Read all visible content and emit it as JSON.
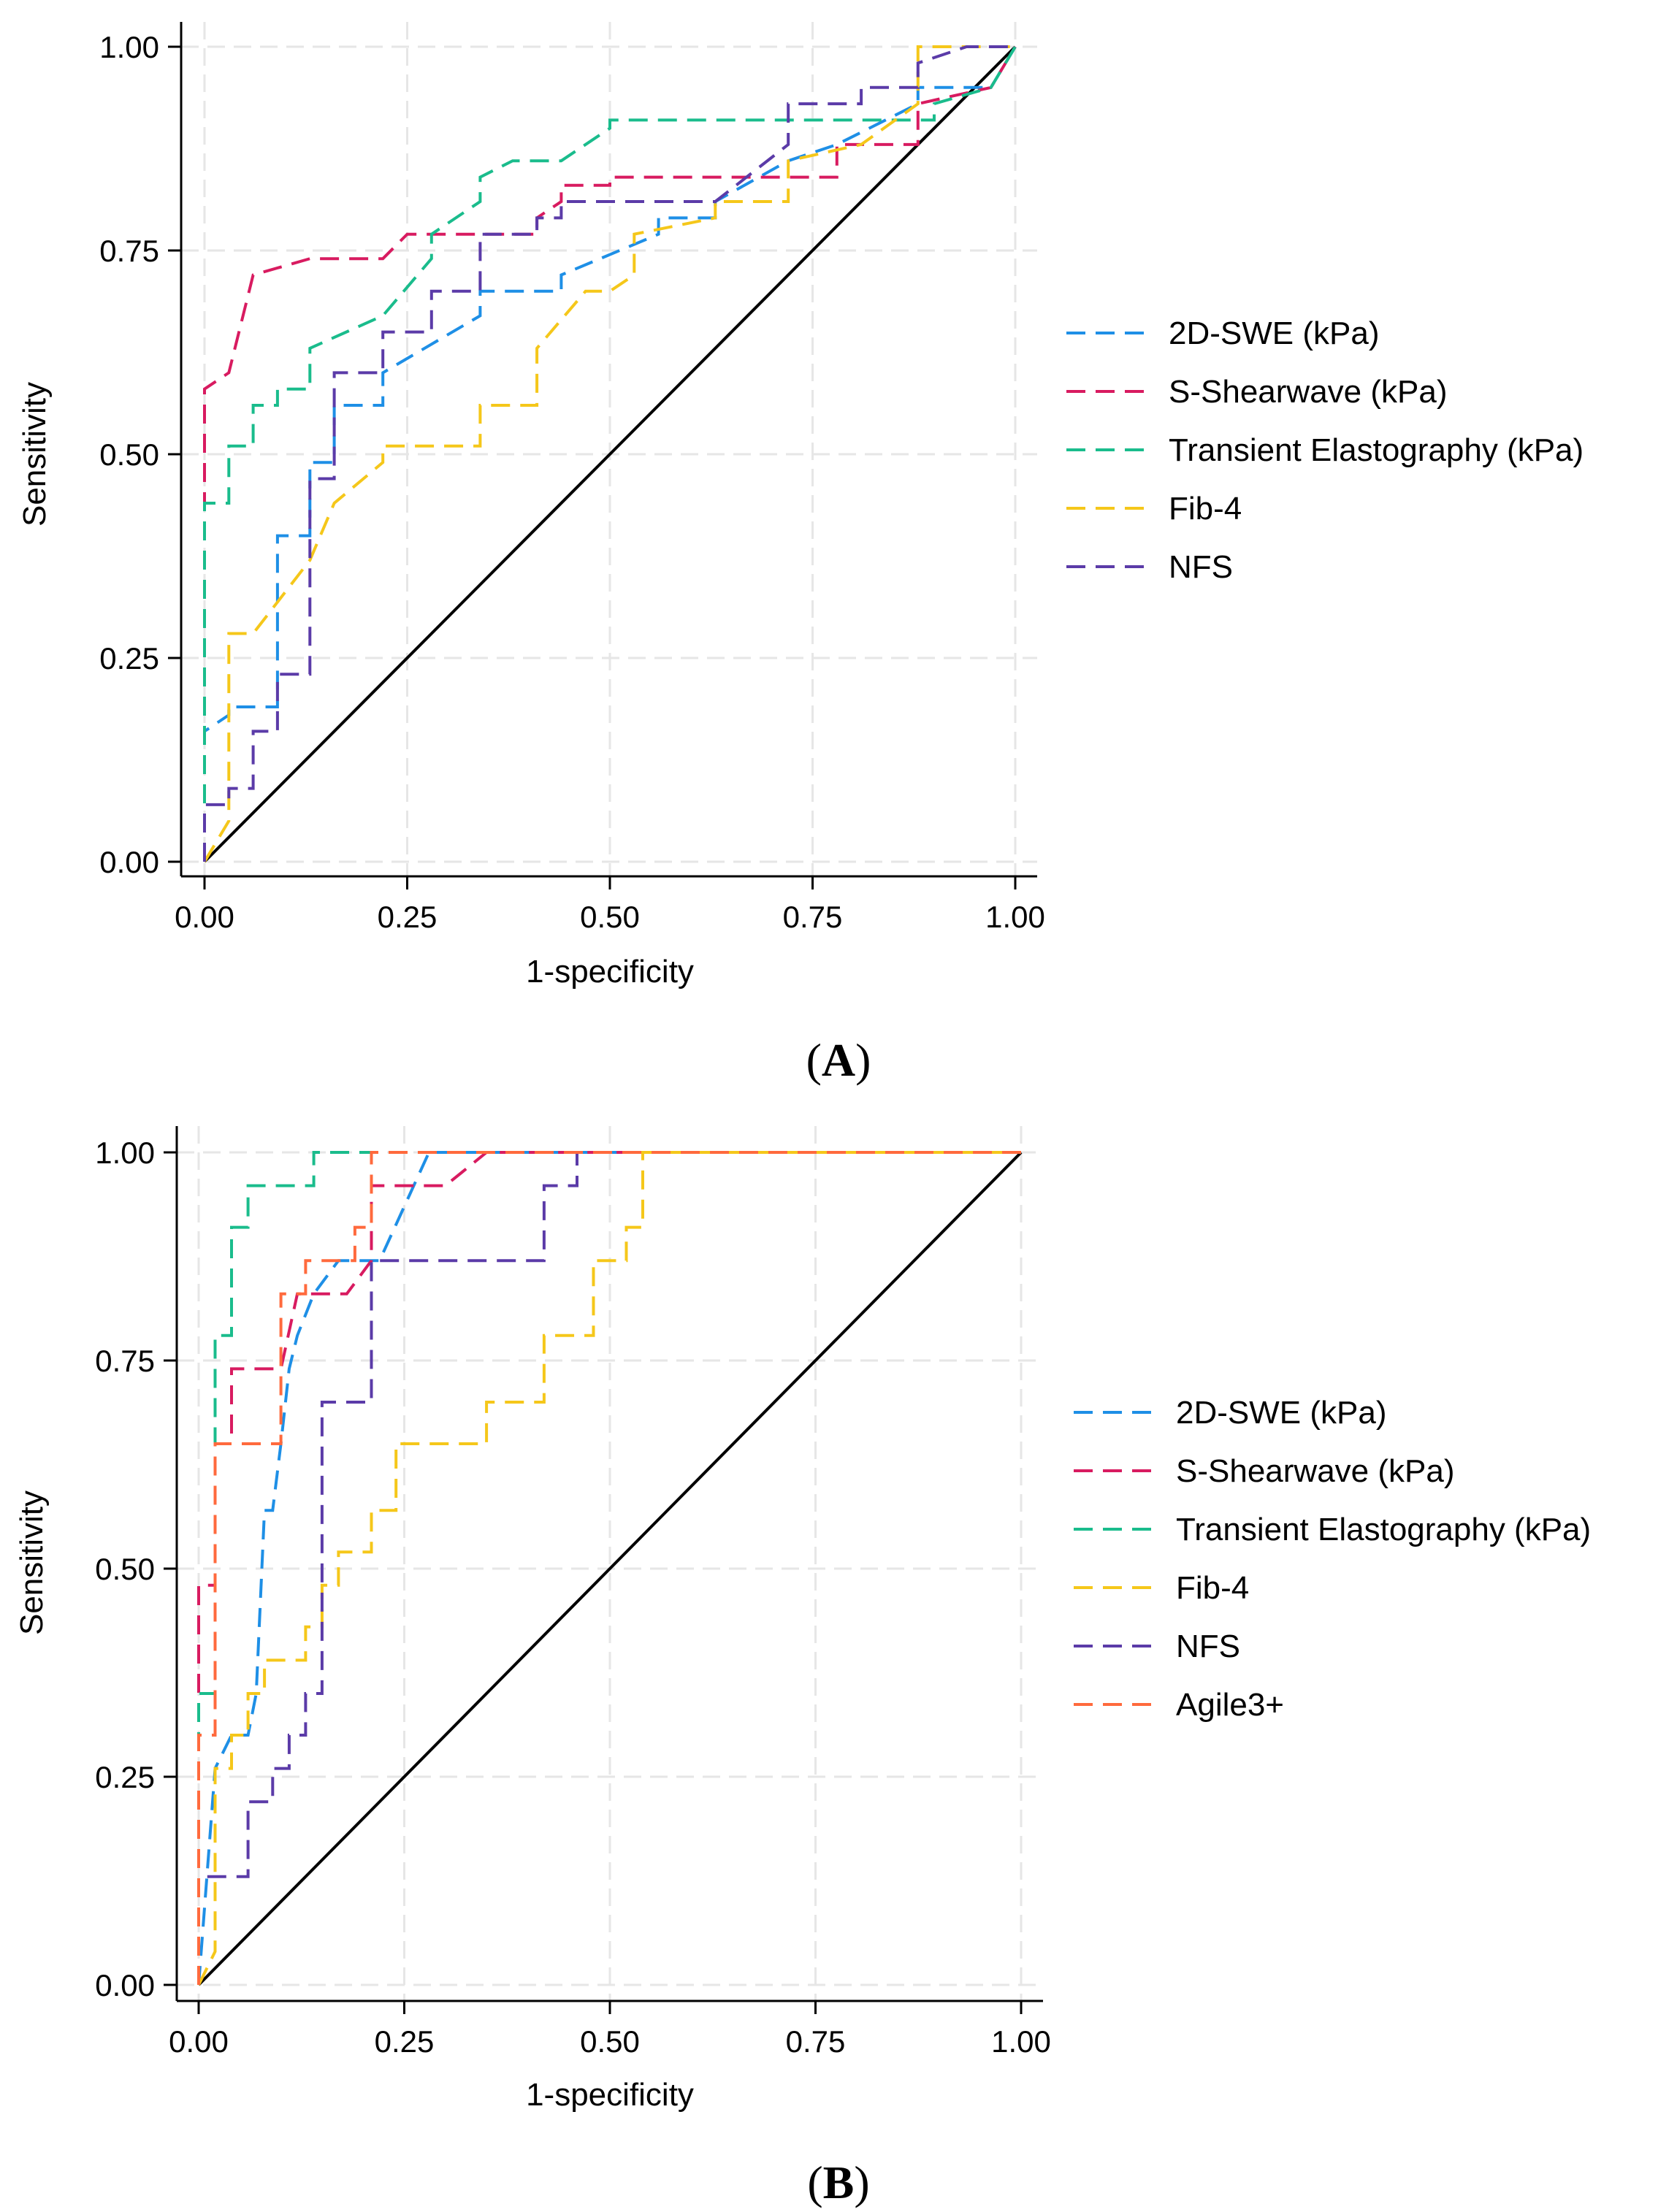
{
  "figure": {
    "panels": [
      {
        "label_open": "(",
        "label_letter": "A",
        "label_close": ")"
      },
      {
        "label_open": "(",
        "label_letter": "B",
        "label_close": ")"
      }
    ]
  },
  "chart_data": [
    {
      "type": "line",
      "panel": "A",
      "xlabel": "1-specificity",
      "ylabel": "Sensitivity",
      "xlim": [
        0,
        1
      ],
      "ylim": [
        0,
        1
      ],
      "xticks": [
        "0.00",
        "0.25",
        "0.50",
        "0.75",
        "1.00"
      ],
      "yticks": [
        "0.00",
        "0.25",
        "0.50",
        "0.75",
        "1.00"
      ],
      "grid": true,
      "legend_position": "right",
      "reference_line": {
        "x": [
          0,
          1
        ],
        "y": [
          0,
          1
        ],
        "color": "#000000"
      },
      "series": [
        {
          "name": "2D-SWE (kPa)",
          "color": "#1e8fe6",
          "x": [
            0,
            0,
            0.03,
            0.03,
            0.09,
            0.09,
            0.13,
            0.13,
            0.16,
            0.16,
            0.22,
            0.22,
            0.34,
            0.34,
            0.44,
            0.44,
            0.56,
            0.56,
            0.63,
            0.63,
            0.72,
            0.78,
            0.88,
            0.88,
            0.97,
            1.0
          ],
          "y": [
            0,
            0.16,
            0.18,
            0.19,
            0.19,
            0.4,
            0.4,
            0.49,
            0.49,
            0.56,
            0.56,
            0.6,
            0.67,
            0.7,
            0.7,
            0.72,
            0.77,
            0.79,
            0.79,
            0.81,
            0.86,
            0.88,
            0.93,
            0.95,
            0.95,
            1.0
          ]
        },
        {
          "name": "S-Shearwave (kPa)",
          "color": "#d81b60",
          "x": [
            0,
            0,
            0.03,
            0.06,
            0.06,
            0.13,
            0.13,
            0.22,
            0.25,
            0.25,
            0.28,
            0.41,
            0.41,
            0.44,
            0.44,
            0.5,
            0.5,
            0.78,
            0.78,
            0.88,
            0.88,
            0.97,
            1.0
          ],
          "y": [
            0,
            0.58,
            0.6,
            0.72,
            0.72,
            0.74,
            0.74,
            0.74,
            0.77,
            0.77,
            0.77,
            0.77,
            0.79,
            0.81,
            0.83,
            0.83,
            0.84,
            0.84,
            0.88,
            0.88,
            0.93,
            0.95,
            1.0
          ]
        },
        {
          "name": "Transient Elastography (kPa)",
          "color": "#1abc8c",
          "x": [
            0,
            0,
            0.03,
            0.03,
            0.06,
            0.06,
            0.09,
            0.09,
            0.13,
            0.13,
            0.22,
            0.28,
            0.28,
            0.34,
            0.34,
            0.38,
            0.44,
            0.5,
            0.5,
            0.63,
            0.75,
            0.9,
            0.9,
            0.97,
            1.0
          ],
          "y": [
            0,
            0.44,
            0.44,
            0.51,
            0.51,
            0.56,
            0.56,
            0.58,
            0.58,
            0.63,
            0.67,
            0.74,
            0.77,
            0.81,
            0.84,
            0.86,
            0.86,
            0.9,
            0.91,
            0.91,
            0.91,
            0.91,
            0.93,
            0.95,
            1.0
          ]
        },
        {
          "name": "Fib-4",
          "color": "#f5c71a",
          "x": [
            0,
            0.03,
            0.03,
            0.06,
            0.06,
            0.13,
            0.13,
            0.16,
            0.16,
            0.22,
            0.22,
            0.34,
            0.34,
            0.41,
            0.41,
            0.47,
            0.5,
            0.53,
            0.53,
            0.63,
            0.63,
            0.72,
            0.72,
            0.81,
            0.81,
            0.88,
            0.88,
            0.94,
            0.97,
            1.0
          ],
          "y": [
            0,
            0.05,
            0.28,
            0.28,
            0.28,
            0.37,
            0.37,
            0.44,
            0.44,
            0.49,
            0.51,
            0.51,
            0.56,
            0.56,
            0.63,
            0.7,
            0.7,
            0.72,
            0.77,
            0.79,
            0.81,
            0.81,
            0.86,
            0.88,
            0.88,
            0.93,
            1.0,
            1.0,
            1.0,
            1.0
          ]
        },
        {
          "name": "NFS",
          "color": "#5b3ba8",
          "x": [
            0,
            0,
            0.03,
            0.03,
            0.06,
            0.06,
            0.09,
            0.09,
            0.13,
            0.13,
            0.16,
            0.16,
            0.22,
            0.22,
            0.28,
            0.28,
            0.34,
            0.34,
            0.41,
            0.41,
            0.44,
            0.44,
            0.63,
            0.72,
            0.72,
            0.81,
            0.81,
            0.88,
            0.88,
            0.94,
            1.0
          ],
          "y": [
            0,
            0.07,
            0.07,
            0.09,
            0.09,
            0.16,
            0.16,
            0.23,
            0.23,
            0.47,
            0.47,
            0.6,
            0.6,
            0.65,
            0.65,
            0.7,
            0.7,
            0.77,
            0.77,
            0.79,
            0.79,
            0.81,
            0.81,
            0.88,
            0.93,
            0.93,
            0.95,
            0.95,
            0.98,
            1.0,
            1.0
          ]
        }
      ]
    },
    {
      "type": "line",
      "panel": "B",
      "xlabel": "1-specificity",
      "ylabel": "Sensitivity",
      "xlim": [
        0,
        1
      ],
      "ylim": [
        0,
        1
      ],
      "xticks": [
        "0.00",
        "0.25",
        "0.50",
        "0.75",
        "1.00"
      ],
      "yticks": [
        "0.00",
        "0.25",
        "0.50",
        "0.75",
        "1.00"
      ],
      "grid": true,
      "legend_position": "right",
      "reference_line": {
        "x": [
          0,
          1
        ],
        "y": [
          0,
          1
        ],
        "color": "#000000"
      },
      "series": [
        {
          "name": "2D-SWE (kPa)",
          "color": "#1e8fe6",
          "x": [
            0,
            0.02,
            0.04,
            0.06,
            0.07,
            0.08,
            0.09,
            0.1,
            0.11,
            0.12,
            0.14,
            0.17,
            0.2,
            0.22,
            0.28,
            0.34,
            1.0
          ],
          "y": [
            0,
            0.26,
            0.3,
            0.3,
            0.35,
            0.57,
            0.57,
            0.65,
            0.74,
            0.78,
            0.83,
            0.87,
            0.87,
            0.87,
            1.0,
            1.0,
            1.0
          ]
        },
        {
          "name": "S-Shearwave (kPa)",
          "color": "#d81b60",
          "x": [
            0,
            0,
            0.02,
            0.02,
            0.04,
            0.04,
            0.1,
            0.12,
            0.18,
            0.21,
            0.21,
            0.3,
            0.35,
            1.0
          ],
          "y": [
            0,
            0.48,
            0.48,
            0.65,
            0.65,
            0.74,
            0.74,
            0.83,
            0.83,
            0.87,
            0.96,
            0.96,
            1.0,
            1.0
          ]
        },
        {
          "name": "Transient Elastography (kPa)",
          "color": "#1abc8c",
          "x": [
            0,
            0,
            0.02,
            0.02,
            0.04,
            0.04,
            0.06,
            0.06,
            0.12,
            0.14,
            0.14,
            1.0
          ],
          "y": [
            0,
            0.35,
            0.35,
            0.78,
            0.78,
            0.91,
            0.91,
            0.96,
            0.96,
            0.96,
            1.0,
            1.0
          ]
        },
        {
          "name": "Fib-4",
          "color": "#f5c71a",
          "x": [
            0,
            0.02,
            0.02,
            0.04,
            0.04,
            0.06,
            0.06,
            0.08,
            0.08,
            0.13,
            0.13,
            0.15,
            0.15,
            0.17,
            0.17,
            0.19,
            0.19,
            0.21,
            0.21,
            0.24,
            0.24,
            0.27,
            0.27,
            0.35,
            0.35,
            0.42,
            0.42,
            0.46,
            0.46,
            0.48,
            0.48,
            0.52,
            0.52,
            0.54,
            0.54,
            1.0
          ],
          "y": [
            0,
            0.04,
            0.26,
            0.26,
            0.3,
            0.3,
            0.35,
            0.35,
            0.39,
            0.39,
            0.43,
            0.43,
            0.48,
            0.48,
            0.52,
            0.52,
            0.52,
            0.52,
            0.57,
            0.57,
            0.65,
            0.65,
            0.65,
            0.65,
            0.7,
            0.7,
            0.78,
            0.78,
            0.78,
            0.78,
            0.87,
            0.87,
            0.91,
            0.91,
            1.0,
            1.0
          ]
        },
        {
          "name": "NFS",
          "color": "#5b3ba8",
          "x": [
            0,
            0,
            0.06,
            0.06,
            0.09,
            0.09,
            0.11,
            0.11,
            0.13,
            0.13,
            0.15,
            0.15,
            0.21,
            0.21,
            0.42,
            0.42,
            0.46,
            0.46,
            1.0
          ],
          "y": [
            0,
            0.13,
            0.13,
            0.22,
            0.22,
            0.26,
            0.26,
            0.3,
            0.3,
            0.35,
            0.35,
            0.7,
            0.7,
            0.87,
            0.87,
            0.96,
            0.96,
            1.0,
            1.0
          ]
        },
        {
          "name": "Agile3+",
          "color": "#ff6a3d",
          "x": [
            0,
            0,
            0.02,
            0.02,
            0.1,
            0.1,
            0.13,
            0.13,
            0.19,
            0.19,
            0.21,
            0.21,
            1.0
          ],
          "y": [
            0,
            0.3,
            0.3,
            0.65,
            0.65,
            0.83,
            0.83,
            0.87,
            0.87,
            0.91,
            0.91,
            1.0,
            1.0
          ]
        }
      ]
    }
  ]
}
